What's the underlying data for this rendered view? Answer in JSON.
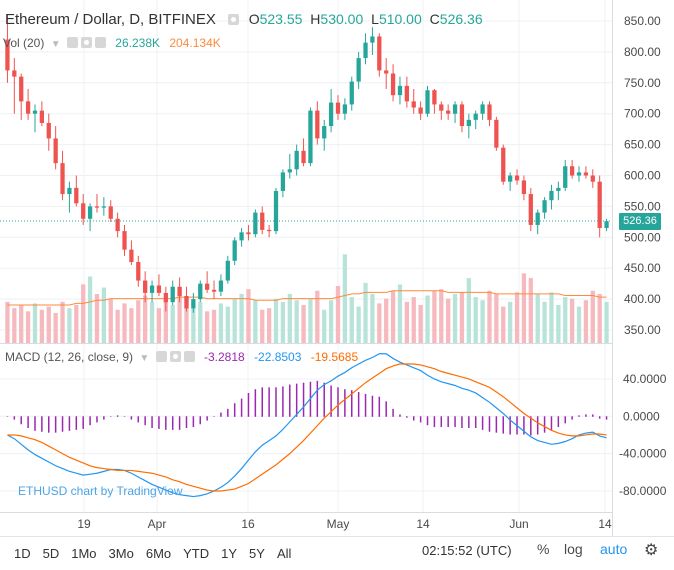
{
  "header": {
    "symbol": "Ethereum / Dollar, D, BITFINEX",
    "o_label": "O",
    "o_value": "523.55",
    "h_label": "H",
    "h_value": "530.00",
    "l_label": "L",
    "l_value": "510.00",
    "c_label": "C",
    "c_value": "526.36"
  },
  "vol_legend": {
    "name": "Vol (20)",
    "value1": "26.238K",
    "value2": "204.134K"
  },
  "macd_legend": {
    "name": "MACD (12, 26, close, 9)",
    "hist": "-3.2818",
    "macd": "-22.8503",
    "signal": "-19.5685"
  },
  "last_price": "526.36",
  "watermark": "ETHUSD chart by TradingView",
  "toolbar": {
    "ranges": [
      "1D",
      "5D",
      "1Mo",
      "3Mo",
      "6Mo",
      "YTD",
      "1Y",
      "5Y",
      "All"
    ],
    "time": "02:15:52 (UTC)",
    "percent": "%",
    "log": "log",
    "auto": "auto"
  },
  "colors": {
    "up": "#26a69a",
    "down": "#ef5350",
    "macd": "#2196f3",
    "signal": "#ff6d00",
    "hist": "#9c27b0",
    "accent": "#2196f3"
  },
  "icons": [
    "settings-icon",
    "collapse-icon",
    "eye-icon",
    "gear-icon",
    "close-icon"
  ],
  "chart_data": [
    {
      "type": "candlestick",
      "title": "Ethereum / Dollar, D, BITFINEX",
      "ylim": [
        320,
        870
      ],
      "y_ticks": [
        350,
        400,
        450,
        500,
        550,
        600,
        650,
        700,
        750,
        800,
        850
      ],
      "x_ticks": [
        "19",
        "Apr",
        "16",
        "May",
        "14",
        "Jun",
        "14"
      ],
      "last_price": 526.36,
      "ohlc": [
        [
          820,
          860,
          750,
          770
        ],
        [
          770,
          790,
          700,
          760
        ],
        [
          760,
          765,
          690,
          720
        ],
        [
          720,
          740,
          690,
          700
        ],
        [
          700,
          715,
          670,
          705
        ],
        [
          705,
          720,
          680,
          685
        ],
        [
          685,
          700,
          640,
          660
        ],
        [
          660,
          680,
          610,
          620
        ],
        [
          620,
          640,
          560,
          570
        ],
        [
          570,
          590,
          540,
          580
        ],
        [
          580,
          600,
          550,
          555
        ],
        [
          555,
          570,
          520,
          530
        ],
        [
          530,
          555,
          510,
          550
        ],
        [
          550,
          570,
          540,
          548
        ],
        [
          548,
          565,
          535,
          550
        ],
        [
          550,
          560,
          525,
          530
        ],
        [
          530,
          540,
          500,
          510
        ],
        [
          510,
          520,
          470,
          480
        ],
        [
          480,
          495,
          455,
          460
        ],
        [
          460,
          470,
          420,
          430
        ],
        [
          430,
          445,
          395,
          410
        ],
        [
          410,
          430,
          395,
          422
        ],
        [
          422,
          440,
          405,
          410
        ],
        [
          410,
          420,
          380,
          395
        ],
        [
          395,
          430,
          390,
          420
        ],
        [
          420,
          435,
          395,
          405
        ],
        [
          405,
          420,
          380,
          385
        ],
        [
          385,
          410,
          378,
          400
        ],
        [
          400,
          430,
          395,
          425
        ],
        [
          425,
          445,
          410,
          415
        ],
        [
          415,
          430,
          400,
          412
        ],
        [
          412,
          440,
          405,
          430
        ],
        [
          430,
          470,
          425,
          462
        ],
        [
          462,
          500,
          455,
          495
        ],
        [
          495,
          515,
          485,
          508
        ],
        [
          508,
          520,
          495,
          505
        ],
        [
          505,
          545,
          500,
          540
        ],
        [
          540,
          550,
          505,
          512
        ],
        [
          512,
          520,
          500,
          510
        ],
        [
          510,
          580,
          505,
          575
        ],
        [
          575,
          610,
          565,
          605
        ],
        [
          605,
          635,
          595,
          610
        ],
        [
          610,
          650,
          600,
          640
        ],
        [
          640,
          660,
          615,
          620
        ],
        [
          620,
          710,
          615,
          705
        ],
        [
          705,
          720,
          650,
          660
        ],
        [
          660,
          690,
          640,
          680
        ],
        [
          680,
          740,
          670,
          718
        ],
        [
          718,
          730,
          690,
          700
        ],
        [
          700,
          725,
          690,
          715
        ],
        [
          715,
          760,
          705,
          752
        ],
        [
          752,
          800,
          740,
          790
        ],
        [
          790,
          830,
          780,
          815
        ],
        [
          815,
          840,
          795,
          825
        ],
        [
          825,
          830,
          760,
          770
        ],
        [
          770,
          790,
          740,
          765
        ],
        [
          765,
          780,
          720,
          730
        ],
        [
          730,
          760,
          715,
          745
        ],
        [
          745,
          760,
          710,
          720
        ],
        [
          720,
          740,
          700,
          710
        ],
        [
          710,
          720,
          690,
          700
        ],
        [
          700,
          745,
          695,
          738
        ],
        [
          738,
          740,
          700,
          715
        ],
        [
          715,
          720,
          690,
          705
        ],
        [
          705,
          715,
          690,
          700
        ],
        [
          700,
          720,
          685,
          715
        ],
        [
          715,
          720,
          670,
          680
        ],
        [
          680,
          700,
          660,
          690
        ],
        [
          690,
          705,
          675,
          700
        ],
        [
          700,
          720,
          690,
          715
        ],
        [
          715,
          720,
          680,
          690
        ],
        [
          690,
          695,
          640,
          645
        ],
        [
          645,
          650,
          585,
          590
        ],
        [
          590,
          605,
          575,
          600
        ],
        [
          600,
          610,
          585,
          592
        ],
        [
          592,
          600,
          560,
          570
        ],
        [
          570,
          580,
          510,
          520
        ],
        [
          520,
          545,
          505,
          540
        ],
        [
          540,
          565,
          530,
          560
        ],
        [
          560,
          585,
          545,
          575
        ],
        [
          575,
          590,
          560,
          580
        ],
        [
          580,
          625,
          575,
          615
        ],
        [
          615,
          625,
          595,
          600
        ],
        [
          600,
          615,
          590,
          605
        ],
        [
          605,
          615,
          595,
          600
        ],
        [
          600,
          610,
          580,
          590
        ],
        [
          590,
          600,
          500,
          515
        ],
        [
          515,
          530,
          510,
          526
        ]
      ]
    },
    {
      "type": "bar",
      "title": "Vol (20)",
      "values": [
        26,
        22,
        24,
        20,
        25,
        21,
        23,
        19,
        26,
        22,
        24,
        37,
        42,
        31,
        35,
        28,
        21,
        25,
        22,
        27,
        30,
        26,
        22,
        27,
        24,
        35,
        29,
        23,
        26,
        20,
        21,
        25,
        23,
        28,
        31,
        34,
        27,
        21,
        22,
        28,
        26,
        31,
        27,
        24,
        28,
        33,
        21,
        27,
        36,
        56,
        29,
        23,
        38,
        31,
        25,
        28,
        33,
        37,
        26,
        29,
        24,
        30,
        33,
        34,
        28,
        31,
        32,
        41,
        29,
        27,
        33,
        31,
        23,
        26,
        32,
        44,
        41,
        31,
        26,
        32,
        24,
        29,
        28,
        23,
        27,
        33,
        31,
        26
      ],
      "ma": [
        24,
        24,
        24,
        24,
        24,
        24,
        24,
        24,
        24,
        24,
        25,
        25,
        26,
        27,
        27,
        28,
        28,
        28,
        28,
        28,
        28,
        28,
        28,
        28,
        28,
        29,
        29,
        29,
        29,
        28,
        28,
        28,
        28,
        28,
        28,
        28,
        27,
        27,
        27,
        27,
        28,
        28,
        28,
        28,
        28,
        28,
        28,
        28,
        29,
        30,
        31,
        31,
        32,
        32,
        32,
        32,
        33,
        33,
        33,
        33,
        33,
        33,
        33,
        33,
        32,
        32,
        32,
        32,
        32,
        32,
        32,
        31,
        31,
        31,
        31,
        31,
        31,
        31,
        31,
        31,
        31,
        30,
        30,
        30,
        30,
        30,
        29,
        29
      ]
    },
    {
      "type": "line",
      "title": "MACD (12, 26, close, 9)",
      "ylim": [
        -95,
        72
      ],
      "y_ticks": [
        40,
        0,
        -40,
        -80
      ],
      "series": [
        {
          "name": "MACD",
          "values": [
            -20,
            -24,
            -30,
            -36,
            -41,
            -45,
            -49,
            -53,
            -56,
            -59,
            -61,
            -63,
            -62,
            -61,
            -59,
            -57,
            -57,
            -58,
            -61,
            -65,
            -69,
            -73,
            -76,
            -79,
            -82,
            -84,
            -85,
            -86,
            -85,
            -83,
            -80,
            -76,
            -71,
            -64,
            -56,
            -47,
            -38,
            -31,
            -26,
            -21,
            -14,
            -6,
            2,
            10,
            19,
            28,
            34,
            38,
            43,
            47,
            52,
            56,
            60,
            63,
            67,
            67,
            62,
            58,
            55,
            52,
            49,
            44,
            40,
            37,
            35,
            33,
            30,
            28,
            25,
            20,
            15,
            9,
            3,
            -4,
            -10,
            -16,
            -22,
            -26,
            -28,
            -30,
            -29,
            -27,
            -24,
            -20,
            -18,
            -17,
            -21,
            -23
          ]
        },
        {
          "name": "Signal",
          "values": [
            -20,
            -20,
            -21,
            -23,
            -25,
            -28,
            -32,
            -36,
            -40,
            -44,
            -47,
            -50,
            -53,
            -55,
            -56,
            -57,
            -58,
            -58,
            -58,
            -59,
            -60,
            -61,
            -63,
            -65,
            -68,
            -70,
            -73,
            -75,
            -77,
            -79,
            -80,
            -80,
            -79,
            -78,
            -75,
            -72,
            -67,
            -62,
            -57,
            -52,
            -46,
            -40,
            -33,
            -26,
            -18,
            -10,
            -2,
            5,
            12,
            18,
            24,
            30,
            36,
            41,
            46,
            51,
            54,
            56,
            56,
            56,
            55,
            53,
            51,
            48,
            46,
            44,
            42,
            40,
            37,
            34,
            31,
            26,
            21,
            15,
            9,
            3,
            -2,
            -7,
            -11,
            -15,
            -18,
            -20,
            -21,
            -21,
            -20,
            -19,
            -19,
            -20
          ]
        },
        {
          "name": "Histogram",
          "values": [
            0,
            -3,
            -8,
            -12,
            -15,
            -16,
            -17,
            -17,
            -16,
            -15,
            -14,
            -13,
            -9,
            -6,
            -3,
            0,
            1,
            0,
            -3,
            -6,
            -9,
            -12,
            -13,
            -14,
            -14,
            -14,
            -12,
            -11,
            -8,
            -4,
            0,
            4,
            8,
            14,
            19,
            25,
            29,
            31,
            31,
            31,
            32,
            34,
            35,
            36,
            37,
            38,
            36,
            33,
            31,
            29,
            28,
            26,
            24,
            22,
            21,
            16,
            8,
            2,
            -1,
            -4,
            -6,
            -9,
            -11,
            -11,
            -11,
            -11,
            -12,
            -12,
            -12,
            -14,
            -16,
            -17,
            -18,
            -19,
            -19,
            -19,
            -20,
            -19,
            -17,
            -15,
            -11,
            -7,
            -3,
            1,
            2,
            2,
            -2,
            -3
          ]
        }
      ]
    }
  ]
}
